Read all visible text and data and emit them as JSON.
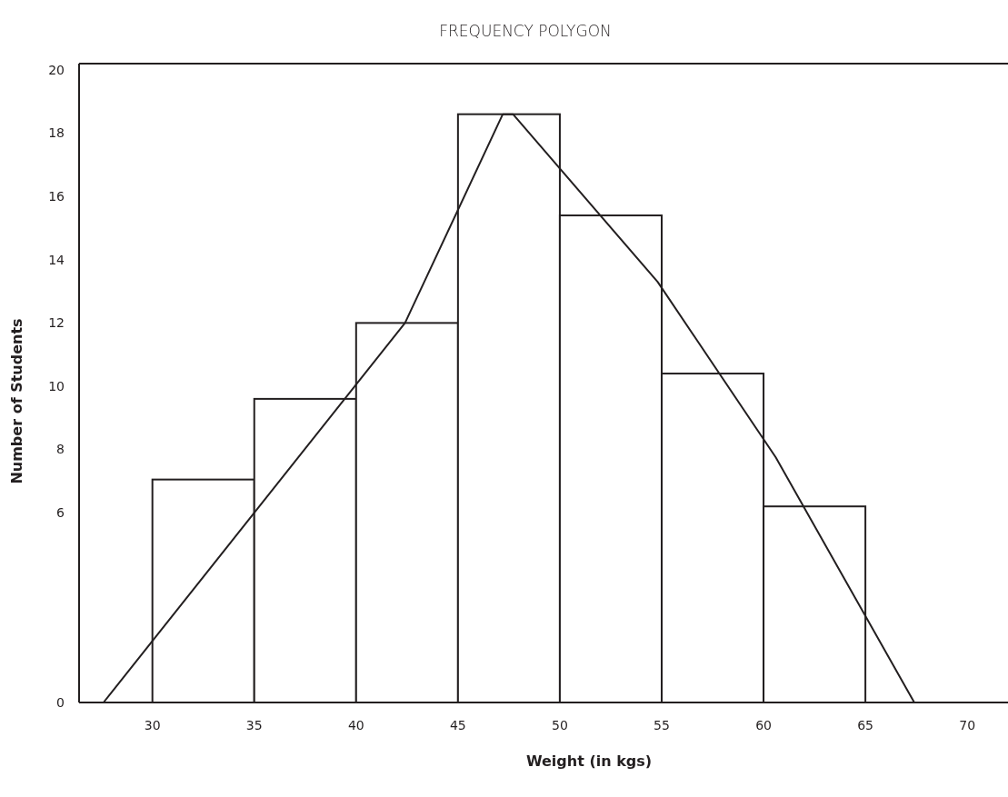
{
  "chart_data": {
    "type": "histogram",
    "title": "FREQUENCY POLYGON",
    "xlabel": "Weight (in kgs)",
    "ylabel": "Number of Students",
    "bins": [
      30,
      35,
      40,
      45,
      50,
      55,
      60,
      65
    ],
    "values": [
      7.05,
      9.6,
      12,
      18.6,
      15.4,
      10.4,
      6.2
    ],
    "color": "#ffffff",
    "series": [
      {
        "type": "line",
        "color": "#231f20",
        "x": [
          27.6,
          42.4,
          47.2,
          47.7,
          54.8,
          60.6,
          67.4
        ],
        "values": [
          0,
          12,
          18.6,
          18.6,
          13.3,
          7.75,
          0
        ]
      }
    ],
    "xlim": [
      26.4,
      72
    ],
    "xticks": [
      30,
      35,
      40,
      45,
      50,
      55,
      60,
      65,
      70
    ],
    "ylim": [
      0,
      20.2
    ],
    "yticks": [
      0,
      6,
      8,
      10,
      12,
      14,
      16,
      18,
      20
    ],
    "grid": false,
    "marker": "none",
    "line_style": "solid"
  }
}
